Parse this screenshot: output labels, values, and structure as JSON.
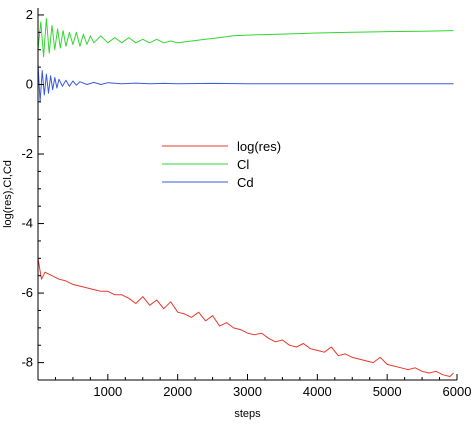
{
  "chart_data": {
    "type": "line",
    "title": "",
    "xlabel": "steps",
    "ylabel": "log(res),Cl,Cd",
    "xlim": [
      0,
      6000
    ],
    "ylim": [
      -8.5,
      2.2
    ],
    "x_ticks": [
      1000,
      2000,
      3000,
      4000,
      5000,
      6000
    ],
    "y_ticks": [
      2,
      0,
      -2,
      -4,
      -6,
      -8
    ],
    "grid": false,
    "legend_position": "center",
    "series": [
      {
        "name": "log(res)",
        "color": "#e8392c",
        "x": [
          0,
          50,
          100,
          200,
          300,
          400,
          500,
          600,
          700,
          800,
          900,
          1000,
          1100,
          1200,
          1300,
          1400,
          1500,
          1600,
          1700,
          1800,
          1900,
          2000,
          2100,
          2200,
          2300,
          2400,
          2500,
          2600,
          2700,
          2800,
          2900,
          3000,
          3100,
          3200,
          3300,
          3400,
          3500,
          3600,
          3700,
          3800,
          3900,
          4000,
          4100,
          4200,
          4300,
          4400,
          4500,
          4600,
          4700,
          4800,
          4900,
          5000,
          5100,
          5200,
          5300,
          5400,
          5500,
          5600,
          5700,
          5800,
          5900,
          5950
        ],
        "values": [
          -5.0,
          -5.6,
          -5.4,
          -5.5,
          -5.6,
          -5.65,
          -5.75,
          -5.8,
          -5.85,
          -5.9,
          -5.95,
          -5.95,
          -6.05,
          -6.05,
          -6.15,
          -6.3,
          -6.1,
          -6.35,
          -6.2,
          -6.45,
          -6.25,
          -6.55,
          -6.6,
          -6.7,
          -6.55,
          -6.8,
          -6.65,
          -6.95,
          -6.85,
          -7.0,
          -7.05,
          -7.15,
          -7.2,
          -7.15,
          -7.3,
          -7.4,
          -7.35,
          -7.5,
          -7.55,
          -7.45,
          -7.6,
          -7.65,
          -7.7,
          -7.55,
          -7.8,
          -7.75,
          -7.85,
          -7.9,
          -7.95,
          -8.0,
          -7.85,
          -8.05,
          -8.1,
          -8.15,
          -8.2,
          -8.15,
          -8.25,
          -8.3,
          -8.25,
          -8.35,
          -8.4,
          -8.3
        ]
      },
      {
        "name": "Cl",
        "color": "#33d633",
        "x": [
          0,
          40,
          80,
          120,
          160,
          200,
          240,
          280,
          320,
          360,
          400,
          450,
          500,
          550,
          600,
          650,
          700,
          750,
          800,
          900,
          1000,
          1100,
          1200,
          1300,
          1400,
          1500,
          1600,
          1700,
          1800,
          1900,
          2000,
          2200,
          2400,
          2600,
          2800,
          3000,
          3500,
          4000,
          4500,
          5000,
          5500,
          5950
        ],
        "values": [
          1.0,
          1.8,
          0.8,
          1.9,
          0.9,
          1.7,
          1.0,
          1.6,
          1.05,
          1.55,
          1.1,
          1.5,
          1.15,
          1.5,
          1.1,
          1.45,
          1.15,
          1.4,
          1.2,
          1.4,
          1.2,
          1.35,
          1.2,
          1.35,
          1.2,
          1.3,
          1.2,
          1.3,
          1.2,
          1.25,
          1.2,
          1.25,
          1.3,
          1.35,
          1.4,
          1.42,
          1.45,
          1.48,
          1.5,
          1.52,
          1.53,
          1.55
        ]
      },
      {
        "name": "Cd",
        "color": "#3a5bd9",
        "x": [
          0,
          30,
          60,
          90,
          120,
          150,
          180,
          210,
          240,
          270,
          300,
          350,
          400,
          450,
          500,
          550,
          600,
          700,
          800,
          900,
          1000,
          1200,
          1400,
          1600,
          1800,
          2000,
          2500,
          3000,
          4000,
          5000,
          5950
        ],
        "values": [
          0.6,
          -0.5,
          0.4,
          -0.3,
          0.3,
          -0.25,
          0.25,
          -0.15,
          0.2,
          -0.1,
          0.15,
          -0.05,
          0.12,
          -0.05,
          0.1,
          -0.02,
          0.08,
          0.0,
          0.06,
          0.0,
          0.05,
          0.02,
          0.04,
          0.02,
          0.03,
          0.02,
          0.03,
          0.02,
          0.02,
          0.02,
          0.02
        ]
      }
    ]
  }
}
